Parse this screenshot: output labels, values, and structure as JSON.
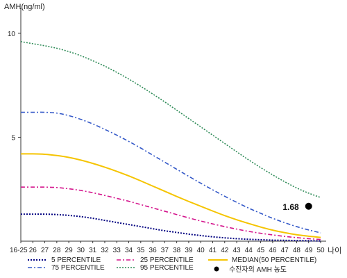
{
  "chart_data": {
    "type": "line",
    "ylabel": "AMH(ng/ml)",
    "xlabel": "나이",
    "ylim": [
      0,
      11
    ],
    "yticks": [
      5,
      10
    ],
    "x": [
      "16-25",
      "26",
      "27",
      "28",
      "29",
      "30",
      "31",
      "32",
      "33",
      "34",
      "35",
      "36",
      "37",
      "38",
      "39",
      "40",
      "41",
      "42",
      "43",
      "44",
      "45",
      "46",
      "47",
      "48",
      "49",
      "50"
    ],
    "series": [
      {
        "name": "5 PERCENTILE",
        "color": "#000080",
        "dash": "2,2",
        "width": 2,
        "values": [
          1.3,
          1.3,
          1.3,
          1.28,
          1.24,
          1.18,
          1.1,
          1.0,
          0.9,
          0.8,
          0.7,
          0.6,
          0.5,
          0.42,
          0.34,
          0.27,
          0.21,
          0.16,
          0.12,
          0.09,
          0.07,
          0.05,
          0.04,
          0.03,
          0.02,
          0.01
        ]
      },
      {
        "name": "25 PERCENTILE",
        "color": "#d4148c",
        "dash": "6,3,2,3",
        "width": 1.6,
        "values": [
          2.6,
          2.6,
          2.6,
          2.58,
          2.52,
          2.44,
          2.33,
          2.2,
          2.06,
          1.92,
          1.76,
          1.6,
          1.44,
          1.28,
          1.12,
          0.97,
          0.83,
          0.7,
          0.58,
          0.47,
          0.38,
          0.3,
          0.23,
          0.17,
          0.12,
          0.08
        ]
      },
      {
        "name": "MEDIAN(50 PERCENTILE)",
        "color": "#f5c400",
        "dash": "",
        "width": 2,
        "values": [
          4.2,
          4.2,
          4.18,
          4.12,
          4.03,
          3.9,
          3.74,
          3.56,
          3.36,
          3.14,
          2.9,
          2.65,
          2.4,
          2.15,
          1.91,
          1.68,
          1.45,
          1.23,
          1.03,
          0.85,
          0.68,
          0.53,
          0.41,
          0.31,
          0.24,
          0.18
        ]
      },
      {
        "name": "75 PERCENTILE",
        "color": "#3358c8",
        "dash": "6,3,2,3",
        "width": 1.6,
        "values": [
          6.2,
          6.2,
          6.2,
          6.16,
          6.04,
          5.86,
          5.64,
          5.38,
          5.1,
          4.8,
          4.48,
          4.14,
          3.8,
          3.46,
          3.12,
          2.79,
          2.47,
          2.16,
          1.87,
          1.59,
          1.34,
          1.1,
          0.89,
          0.7,
          0.54,
          0.4
        ]
      },
      {
        "name": "95 PERCENTILE",
        "color": "#2e8b57",
        "dash": "2,2",
        "width": 1.6,
        "values": [
          9.6,
          9.5,
          9.4,
          9.28,
          9.12,
          8.92,
          8.68,
          8.42,
          8.12,
          7.8,
          7.45,
          7.08,
          6.7,
          6.3,
          5.9,
          5.5,
          5.1,
          4.7,
          4.3,
          3.91,
          3.54,
          3.19,
          2.86,
          2.56,
          2.31,
          2.1
        ]
      }
    ],
    "point": {
      "name": "수진자의 AMH 농도",
      "x": "49",
      "y": 1.68,
      "label": "1.68",
      "color": "#000000"
    },
    "grid": false,
    "legend_position": "bottom"
  }
}
